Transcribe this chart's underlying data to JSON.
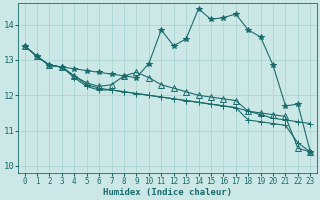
{
  "xlabel": "Humidex (Indice chaleur)",
  "bg_color": "#cce8e6",
  "grid_color": "#b0d8d5",
  "line_color": "#1a6b6b",
  "xlim": [
    -0.5,
    23.5
  ],
  "ylim": [
    9.8,
    14.6
  ],
  "yticks": [
    10,
    11,
    12,
    13,
    14
  ],
  "xticks": [
    0,
    1,
    2,
    3,
    4,
    5,
    6,
    7,
    8,
    9,
    10,
    11,
    12,
    13,
    14,
    15,
    16,
    17,
    18,
    19,
    20,
    21,
    22,
    23
  ],
  "series": [
    {
      "y": [
        13.4,
        13.1,
        12.85,
        12.8,
        12.75,
        12.7,
        12.65,
        12.6,
        12.55,
        12.5,
        12.9,
        13.85,
        13.4,
        13.6,
        14.45,
        14.15,
        14.2,
        14.3,
        13.85,
        13.65,
        12.85,
        11.7,
        11.75,
        10.4
      ],
      "marker": "*",
      "ms": 4
    },
    {
      "y": [
        13.4,
        13.1,
        12.85,
        12.8,
        12.55,
        12.35,
        12.25,
        12.3,
        12.55,
        12.65,
        12.5,
        12.3,
        12.2,
        12.1,
        12.0,
        11.95,
        11.9,
        11.85,
        11.55,
        11.5,
        11.45,
        11.4,
        10.5,
        10.4
      ],
      "marker": "^",
      "ms": 4
    },
    {
      "y": [
        13.4,
        13.1,
        12.85,
        12.8,
        12.5,
        12.25,
        12.15,
        12.15,
        12.1,
        12.05,
        12.0,
        11.95,
        11.9,
        11.85,
        11.8,
        11.75,
        11.7,
        11.65,
        11.55,
        11.45,
        11.35,
        11.3,
        11.25,
        11.2
      ],
      "marker": "+",
      "ms": 4
    },
    {
      "y": [
        13.4,
        13.1,
        12.85,
        12.8,
        12.55,
        12.3,
        12.2,
        12.15,
        12.1,
        12.05,
        12.0,
        11.95,
        11.9,
        11.85,
        11.8,
        11.75,
        11.7,
        11.65,
        11.3,
        11.25,
        11.2,
        11.15,
        10.65,
        10.4
      ],
      "marker": "+",
      "ms": 4
    }
  ]
}
